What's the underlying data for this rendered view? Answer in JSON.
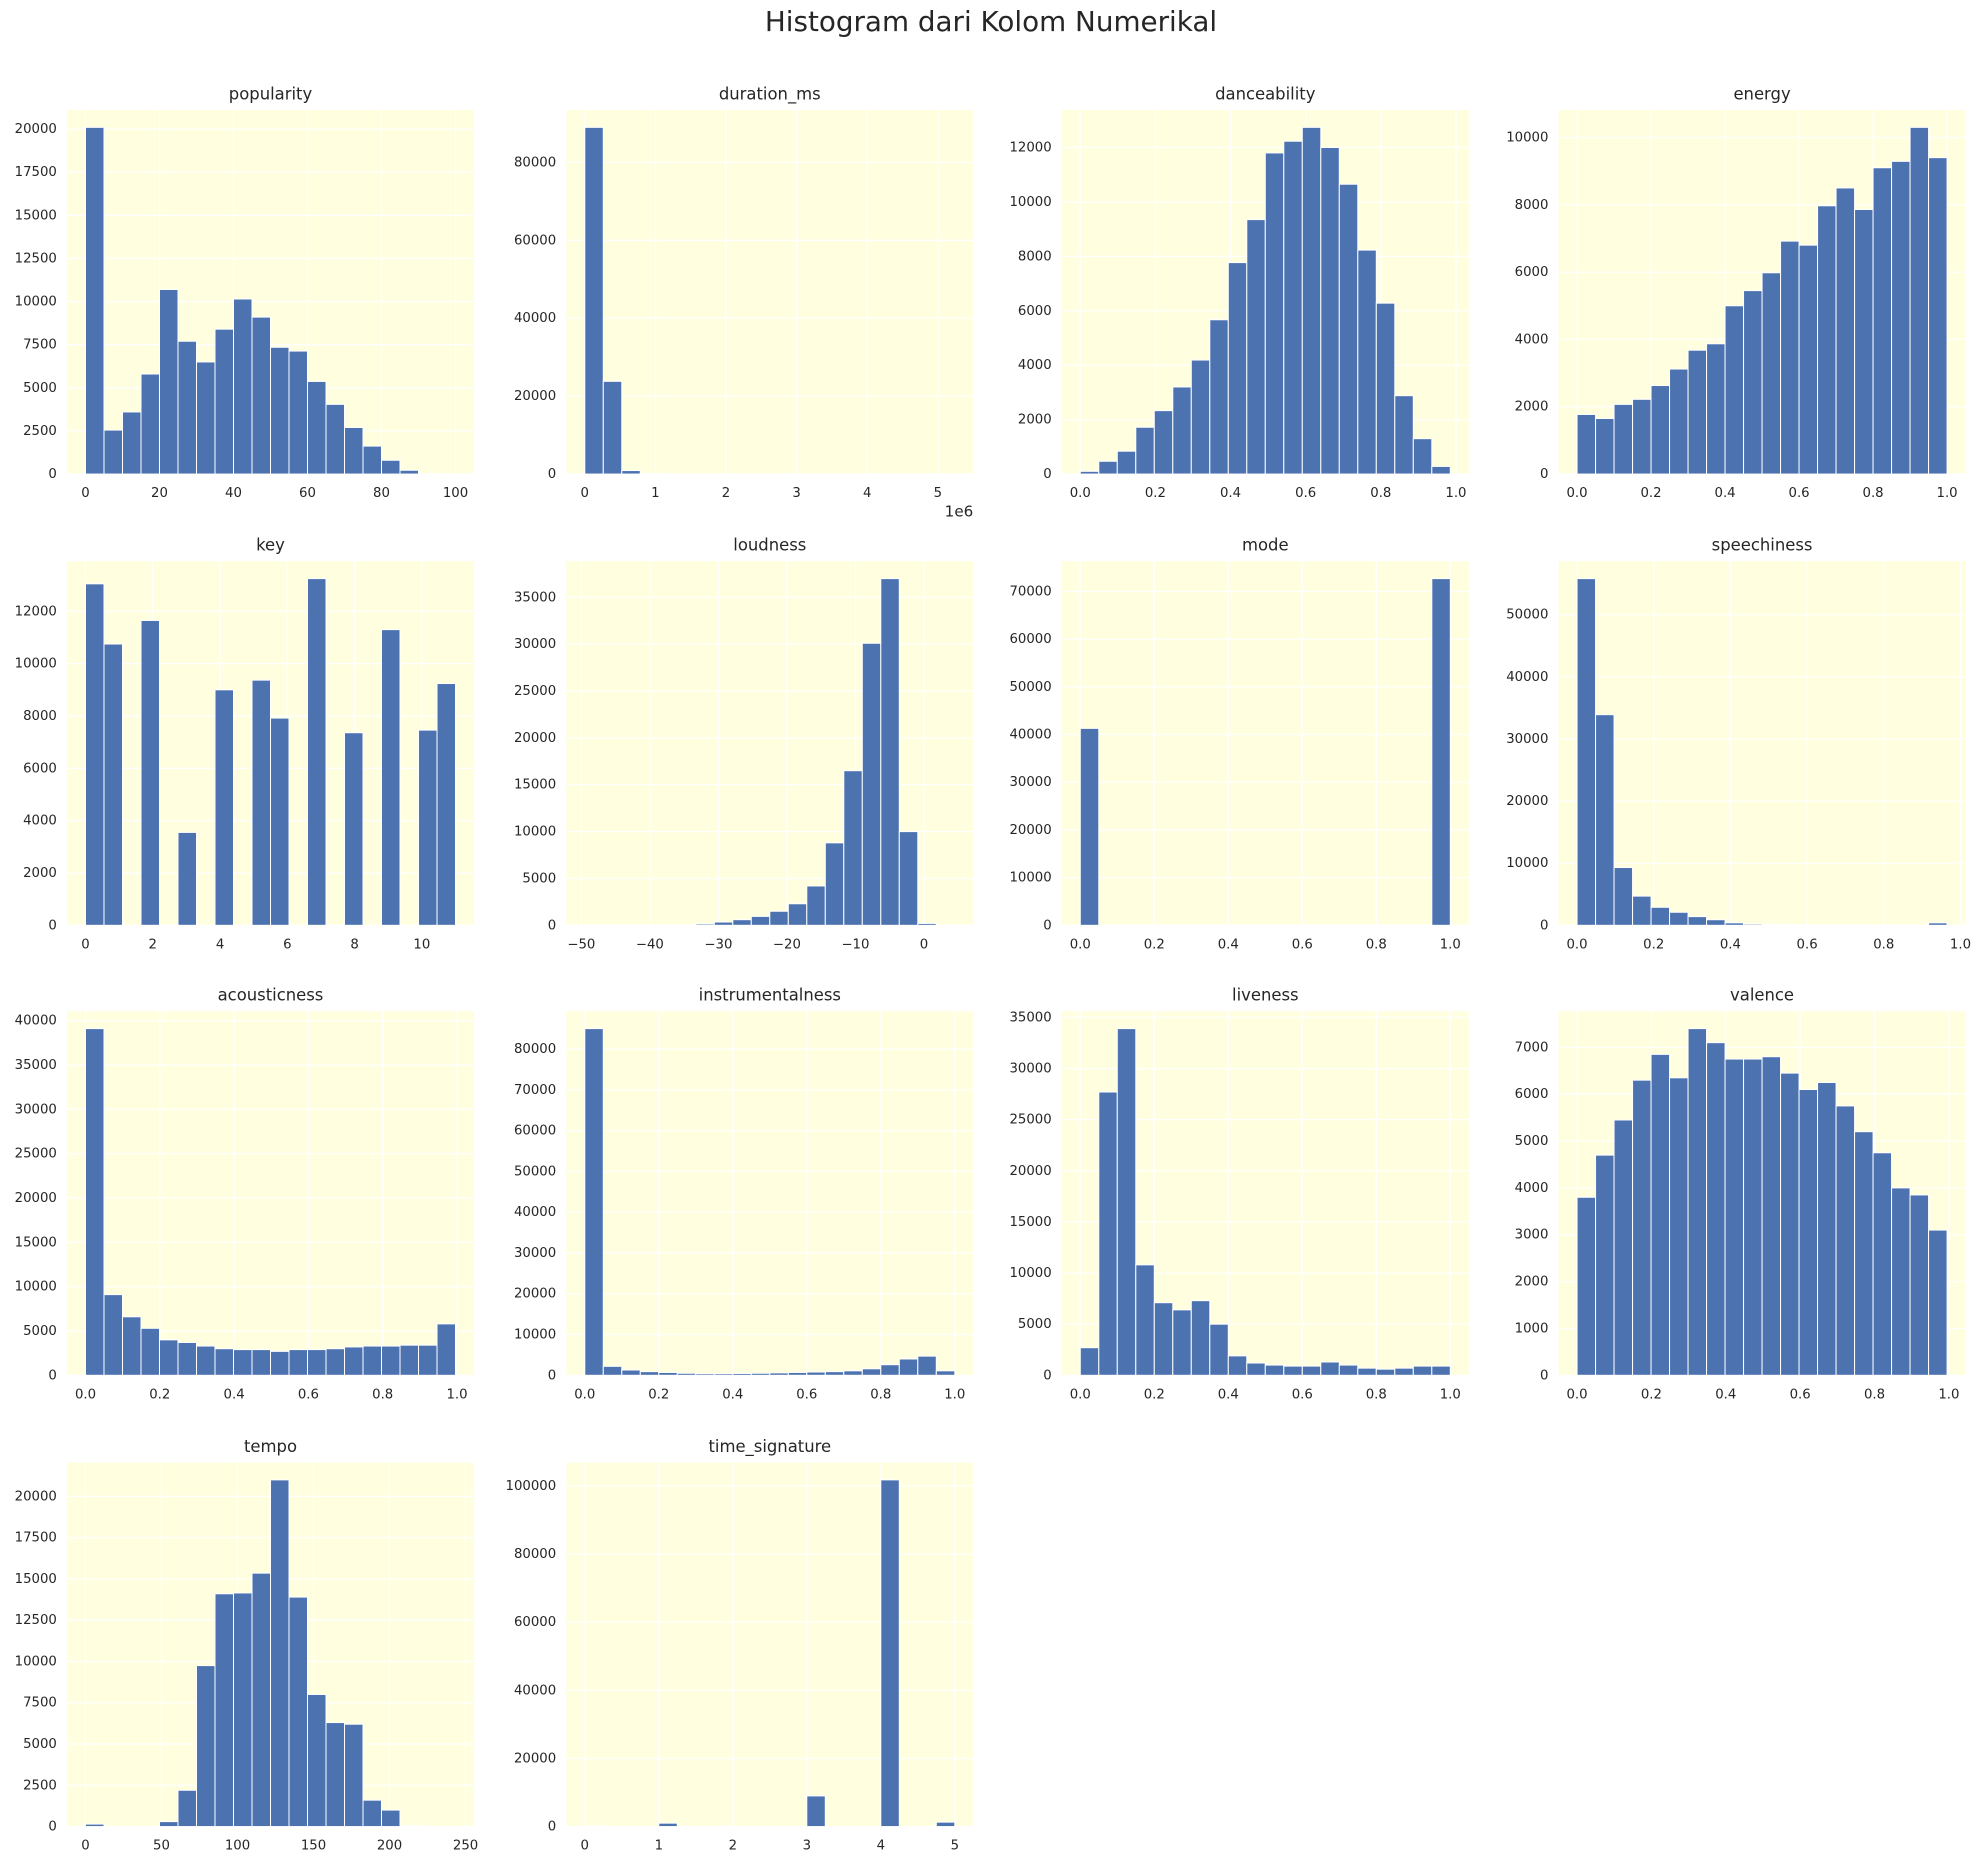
{
  "title": "Histogram dari Kolom Numerikal",
  "chart_data": [
    {
      "type": "histogram",
      "title": "popularity",
      "color": "#4c72b0",
      "grid": true,
      "bins": [
        0,
        5,
        10,
        15,
        20,
        25,
        30,
        35,
        40,
        45,
        50,
        55,
        60,
        65,
        70,
        75,
        80,
        85,
        90,
        95,
        100
      ],
      "values": [
        20100,
        2550,
        3600,
        5800,
        10700,
        7700,
        6500,
        8400,
        10150,
        9100,
        7350,
        7130,
        5370,
        4040,
        2700,
        1620,
        800,
        220,
        30,
        5
      ],
      "xlim": [
        -5,
        105
      ],
      "xticks": [
        0,
        20,
        40,
        60,
        80,
        100
      ],
      "ylim": [
        0,
        21105
      ],
      "yticks": [
        0,
        2500,
        5000,
        7500,
        10000,
        12500,
        15000,
        17500,
        20000
      ]
    },
    {
      "type": "histogram",
      "title": "duration_ms",
      "color": "#4c72b0",
      "grid": true,
      "bins": [
        0,
        262000,
        524000,
        786000,
        1048000,
        1310000,
        1572000,
        1834000,
        2096000,
        2358000,
        2620000,
        2882000,
        3144000,
        3406000,
        3668000,
        3930000,
        4192000,
        4454000,
        4716000,
        4978000,
        5240000
      ],
      "values": [
        89000,
        23800,
        900,
        150,
        40,
        20,
        10,
        5,
        3,
        2,
        1,
        1,
        0,
        0,
        0,
        0,
        0,
        0,
        0,
        1
      ],
      "xlim": [
        -262000,
        5502000
      ],
      "xticks": [
        0,
        {
          "value": 1000000,
          "label": "1"
        },
        {
          "value": 2000000,
          "label": "2"
        },
        {
          "value": 3000000,
          "label": "3"
        },
        {
          "value": 4000000,
          "label": "4"
        },
        {
          "value": 5000000,
          "label": "5"
        }
      ],
      "offset_text": "1e6",
      "ylim": [
        0,
        93450
      ],
      "yticks": [
        0,
        20000,
        40000,
        60000,
        80000
      ]
    },
    {
      "type": "histogram",
      "title": "danceability",
      "color": "#4c72b0",
      "grid": true,
      "bins": [
        0,
        0.04925,
        0.0985,
        0.14775,
        0.197,
        0.24625,
        0.2955,
        0.34475,
        0.394,
        0.44325,
        0.4925,
        0.54175,
        0.591,
        0.64025,
        0.6895,
        0.73875,
        0.788,
        0.83725,
        0.8865,
        0.93575,
        0.985
      ],
      "values": [
        100,
        470,
        840,
        1720,
        2330,
        3200,
        4190,
        5670,
        7770,
        9350,
        11800,
        12230,
        12740,
        12000,
        10650,
        8230,
        6280,
        2880,
        1300,
        280
      ],
      "xlim": [
        -0.04925,
        1.03425
      ],
      "xticks": [
        {
          "value": 0,
          "label": "0.0"
        },
        0.2,
        0.4,
        0.6,
        0.8,
        {
          "value": 1,
          "label": "1.0"
        }
      ],
      "ylim": [
        0,
        13377
      ],
      "yticks": [
        0,
        2000,
        4000,
        6000,
        8000,
        10000,
        12000
      ]
    },
    {
      "type": "histogram",
      "title": "energy",
      "color": "#4c72b0",
      "grid": true,
      "bins": [
        0,
        0.05,
        0.1,
        0.15,
        0.2,
        0.25,
        0.3,
        0.35,
        0.4,
        0.45,
        0.5,
        0.55,
        0.6,
        0.65,
        0.7,
        0.75,
        0.8,
        0.85,
        0.9,
        0.95,
        1
      ],
      "values": [
        1770,
        1650,
        2070,
        2220,
        2630,
        3120,
        3680,
        3870,
        5000,
        5450,
        5980,
        6920,
        6800,
        7970,
        8500,
        7860,
        9100,
        9290,
        10300,
        9400
      ],
      "xlim": [
        -0.05,
        1.05
      ],
      "xticks": [
        {
          "value": 0,
          "label": "0.0"
        },
        0.2,
        0.4,
        0.6,
        0.8,
        {
          "value": 1,
          "label": "1.0"
        }
      ],
      "ylim": [
        0,
        10815
      ],
      "yticks": [
        0,
        2000,
        4000,
        6000,
        8000,
        10000
      ]
    },
    {
      "type": "histogram",
      "title": "key",
      "color": "#4c72b0",
      "grid": true,
      "bins": [
        0,
        0.55,
        1.1,
        1.65,
        2.2,
        2.75,
        3.3,
        3.85,
        4.4,
        4.95,
        5.5,
        6.05,
        6.6,
        7.15,
        7.7,
        8.25,
        8.8,
        9.35,
        9.9,
        10.45,
        11
      ],
      "values": [
        13050,
        10750,
        0,
        11650,
        0,
        3550,
        0,
        9000,
        0,
        9370,
        7920,
        0,
        13250,
        0,
        7360,
        0,
        11300,
        0,
        7460,
        9240
      ],
      "xlim": [
        -0.55,
        11.55
      ],
      "xticks": [
        0,
        2,
        4,
        6,
        8,
        10
      ],
      "ylim": [
        0,
        13912
      ],
      "yticks": [
        0,
        2000,
        4000,
        6000,
        8000,
        10000,
        12000
      ]
    },
    {
      "type": "histogram",
      "title": "loudness",
      "color": "#4c72b0",
      "grid": true,
      "bins": [
        -49.5,
        -46.8,
        -44.1,
        -41.4,
        -38.7,
        -36,
        -33.3,
        -30.6,
        -27.9,
        -25.2,
        -22.5,
        -19.8,
        -17.1,
        -14.4,
        -11.7,
        -9,
        -6.3,
        -3.6,
        -0.9,
        1.8,
        4.5
      ],
      "values": [
        2,
        3,
        5,
        10,
        20,
        50,
        150,
        350,
        600,
        950,
        1500,
        2300,
        4200,
        8800,
        16500,
        30100,
        37000,
        10000,
        200,
        5
      ],
      "xlim": [
        -52.2,
        7.2
      ],
      "xticks": [
        {
          "value": -50,
          "label": "−50"
        },
        {
          "value": -40,
          "label": "−40"
        },
        {
          "value": -30,
          "label": "−30"
        },
        {
          "value": -20,
          "label": "−20"
        },
        {
          "value": -10,
          "label": "−10"
        },
        0
      ],
      "ylim": [
        0,
        38850
      ],
      "yticks": [
        0,
        5000,
        10000,
        15000,
        20000,
        25000,
        30000,
        35000
      ]
    },
    {
      "type": "histogram",
      "title": "mode",
      "color": "#4c72b0",
      "grid": true,
      "bins": [
        0,
        0.05,
        0.1,
        0.15,
        0.2,
        0.25,
        0.3,
        0.35,
        0.4,
        0.45,
        0.5,
        0.55,
        0.6,
        0.65,
        0.7,
        0.75,
        0.8,
        0.85,
        0.9,
        0.95,
        1
      ],
      "values": [
        41300,
        0,
        0,
        0,
        0,
        0,
        0,
        0,
        0,
        0,
        0,
        0,
        0,
        0,
        0,
        0,
        0,
        0,
        0,
        72700
      ],
      "xlim": [
        -0.05,
        1.05
      ],
      "xticks": [
        {
          "value": 0,
          "label": "0.0"
        },
        0.2,
        0.4,
        0.6,
        0.8,
        {
          "value": 1,
          "label": "1.0"
        }
      ],
      "ylim": [
        0,
        76335
      ],
      "yticks": [
        0,
        10000,
        20000,
        30000,
        40000,
        50000,
        60000,
        70000
      ]
    },
    {
      "type": "histogram",
      "title": "speechiness",
      "color": "#4c72b0",
      "grid": true,
      "bins": [
        0,
        0.04825,
        0.0965,
        0.14475,
        0.193,
        0.24125,
        0.2895,
        0.33775,
        0.386,
        0.43425,
        0.4825,
        0.53075,
        0.579,
        0.62725,
        0.6755,
        0.72375,
        0.772,
        0.82025,
        0.8685,
        0.91675,
        0.965
      ],
      "values": [
        55800,
        33900,
        9300,
        4700,
        2900,
        2100,
        1400,
        900,
        400,
        200,
        150,
        100,
        80,
        60,
        50,
        50,
        40,
        30,
        50,
        400
      ],
      "xlim": [
        -0.04825,
        1.01325
      ],
      "xticks": [
        {
          "value": 0,
          "label": "0.0"
        },
        0.2,
        0.4,
        0.6,
        0.8,
        {
          "value": 1,
          "label": "1.0"
        }
      ],
      "ylim": [
        0,
        58590
      ],
      "yticks": [
        0,
        10000,
        20000,
        30000,
        40000,
        50000
      ]
    },
    {
      "type": "histogram",
      "title": "acousticness",
      "color": "#4c72b0",
      "grid": true,
      "bins": [
        0,
        0.0498,
        0.0996,
        0.1494,
        0.1992,
        0.249,
        0.2988,
        0.3486,
        0.3984,
        0.4482,
        0.498,
        0.5478,
        0.5976,
        0.6474,
        0.6972,
        0.747,
        0.7968,
        0.8466,
        0.8964,
        0.9462,
        0.996
      ],
      "values": [
        39100,
        9100,
        6600,
        5300,
        4000,
        3700,
        3300,
        3000,
        2900,
        2900,
        2700,
        2900,
        2900,
        3000,
        3200,
        3300,
        3300,
        3400,
        3400,
        5800
      ],
      "xlim": [
        -0.0498,
        1.0458
      ],
      "xticks": [
        {
          "value": 0,
          "label": "0.0"
        },
        0.2,
        0.4,
        0.6,
        0.8,
        {
          "value": 1,
          "label": "1.0"
        }
      ],
      "ylim": [
        0,
        41055
      ],
      "yticks": [
        0,
        5000,
        10000,
        15000,
        20000,
        25000,
        30000,
        35000,
        40000
      ]
    },
    {
      "type": "histogram",
      "title": "instrumentalness",
      "color": "#4c72b0",
      "grid": true,
      "bins": [
        0,
        0.05,
        0.1,
        0.15,
        0.2,
        0.25,
        0.3,
        0.35,
        0.4,
        0.45,
        0.5,
        0.55,
        0.6,
        0.65,
        0.7,
        0.75,
        0.8,
        0.85,
        0.9,
        0.95,
        1
      ],
      "values": [
        85000,
        2200,
        1300,
        900,
        700,
        500,
        400,
        400,
        450,
        500,
        600,
        700,
        800,
        900,
        1100,
        1600,
        2600,
        4000,
        4700,
        1100
      ],
      "xlim": [
        -0.05,
        1.05
      ],
      "xticks": [
        {
          "value": 0,
          "label": "0.0"
        },
        0.2,
        0.4,
        0.6,
        0.8,
        {
          "value": 1,
          "label": "1.0"
        }
      ],
      "ylim": [
        0,
        89250
      ],
      "yticks": [
        0,
        10000,
        20000,
        30000,
        40000,
        50000,
        60000,
        70000,
        80000
      ]
    },
    {
      "type": "histogram",
      "title": "liveness",
      "color": "#4c72b0",
      "grid": true,
      "bins": [
        0,
        0.05,
        0.1,
        0.15,
        0.2,
        0.25,
        0.3,
        0.35,
        0.4,
        0.45,
        0.5,
        0.55,
        0.6,
        0.65,
        0.7,
        0.75,
        0.8,
        0.85,
        0.9,
        0.95,
        1
      ],
      "values": [
        2700,
        27700,
        33900,
        10800,
        7100,
        6400,
        7300,
        5000,
        1900,
        1200,
        1000,
        900,
        900,
        1300,
        1000,
        700,
        600,
        700,
        900,
        900
      ],
      "xlim": [
        -0.05,
        1.05
      ],
      "xticks": [
        {
          "value": 0,
          "label": "0.0"
        },
        0.2,
        0.4,
        0.6,
        0.8,
        {
          "value": 1,
          "label": "1.0"
        }
      ],
      "ylim": [
        0,
        35595
      ],
      "yticks": [
        0,
        5000,
        10000,
        15000,
        20000,
        25000,
        30000,
        35000
      ]
    },
    {
      "type": "histogram",
      "title": "valence",
      "color": "#4c72b0",
      "grid": true,
      "bins": [
        0,
        0.04975,
        0.0995,
        0.14925,
        0.199,
        0.24875,
        0.2985,
        0.34825,
        0.398,
        0.44775,
        0.4975,
        0.54725,
        0.597,
        0.64675,
        0.6965,
        0.74625,
        0.796,
        0.84575,
        0.8955,
        0.94525,
        0.995
      ],
      "values": [
        3800,
        4700,
        5450,
        6300,
        6850,
        6350,
        7400,
        7100,
        6750,
        6750,
        6800,
        6450,
        6100,
        6250,
        5750,
        5200,
        4750,
        4000,
        3850,
        3100
      ],
      "xlim": [
        -0.04975,
        1.04475
      ],
      "xticks": [
        {
          "value": 0,
          "label": "0.0"
        },
        0.2,
        0.4,
        0.6,
        0.8,
        {
          "value": 1,
          "label": "1.0"
        }
      ],
      "ylim": [
        0,
        7770
      ],
      "yticks": [
        0,
        1000,
        2000,
        3000,
        4000,
        5000,
        6000,
        7000
      ]
    },
    {
      "type": "histogram",
      "title": "tempo",
      "color": "#4c72b0",
      "grid": true,
      "bins": [
        0,
        12.17,
        24.34,
        36.51,
        48.68,
        60.85,
        73.02,
        85.19,
        97.36,
        109.53,
        121.7,
        133.87,
        146.04,
        158.21,
        170.38,
        182.55,
        194.72,
        206.89,
        219.06,
        231.23,
        243.4
      ],
      "values": [
        150,
        5,
        0,
        0,
        300,
        2200,
        9750,
        14100,
        14150,
        15350,
        21000,
        13900,
        8000,
        6300,
        6200,
        1600,
        1000,
        50,
        10,
        5
      ],
      "xlim": [
        -12.17,
        255.57
      ],
      "xticks": [
        0,
        50,
        100,
        150,
        200,
        250
      ],
      "ylim": [
        0,
        22050
      ],
      "yticks": [
        0,
        2500,
        5000,
        7500,
        10000,
        12500,
        15000,
        17500,
        20000
      ]
    },
    {
      "type": "histogram",
      "title": "time_signature",
      "color": "#4c72b0",
      "grid": true,
      "bins": [
        0,
        0.25,
        0.5,
        0.75,
        1,
        1.25,
        1.5,
        1.75,
        2,
        2.25,
        2.5,
        2.75,
        3,
        3.25,
        3.5,
        3.75,
        4,
        4.25,
        4.5,
        4.75,
        5
      ],
      "values": [
        150,
        0,
        0,
        0,
        1000,
        0,
        0,
        0,
        0,
        0,
        0,
        0,
        9000,
        0,
        0,
        0,
        101800,
        0,
        0,
        1300
      ],
      "xlim": [
        -0.25,
        5.25
      ],
      "xticks": [
        0,
        1,
        2,
        3,
        4,
        5
      ],
      "ylim": [
        0,
        106890
      ],
      "yticks": [
        0,
        20000,
        40000,
        60000,
        80000,
        100000
      ]
    }
  ]
}
